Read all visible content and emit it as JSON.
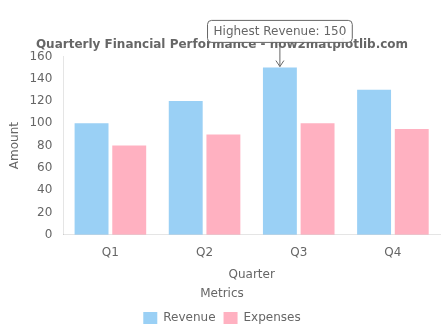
{
  "chart_data": {
    "type": "bar",
    "title": "Quarterly Financial Performance - how2matplotlib.com",
    "xlabel": "Quarter",
    "ylabel": "Amount",
    "categories": [
      "Q1",
      "Q2",
      "Q3",
      "Q4"
    ],
    "series": [
      {
        "name": "Revenue",
        "values": [
          100,
          120,
          150,
          130
        ]
      },
      {
        "name": "Expenses",
        "values": [
          80,
          90,
          100,
          95
        ]
      }
    ],
    "legend_title": "Metrics",
    "legend": "bottom",
    "ylim": [
      0,
      160
    ],
    "yticks": [
      0,
      20,
      40,
      60,
      80,
      100,
      120,
      140,
      160
    ],
    "grid": false,
    "annotations": [
      {
        "text": "Highest Revenue: 150",
        "x": "Q3",
        "y": 150,
        "series": "Revenue"
      }
    ]
  }
}
